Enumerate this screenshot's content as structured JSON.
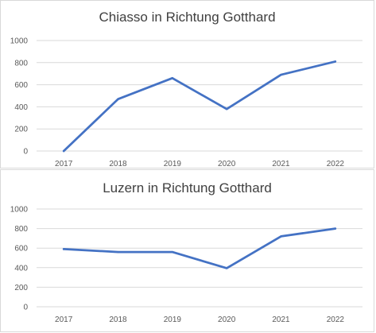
{
  "chart_data": [
    {
      "type": "line",
      "title": "Chiasso in Richtung Gotthard",
      "categories": [
        "2017",
        "2018",
        "2019",
        "2020",
        "2021",
        "2022"
      ],
      "series": [
        {
          "values": [
            0,
            470,
            660,
            380,
            690,
            810
          ],
          "color": "#4472C4"
        }
      ],
      "ylim": [
        0,
        1000
      ],
      "yticks": [
        0,
        200,
        400,
        600,
        800,
        1000
      ],
      "grid": true,
      "xlabel": "",
      "ylabel": ""
    },
    {
      "type": "line",
      "title": "Luzern in Richtung Gotthard",
      "categories": [
        "2017",
        "2018",
        "2019",
        "2020",
        "2021",
        "2022"
      ],
      "series": [
        {
          "values": [
            590,
            560,
            560,
            395,
            720,
            800
          ],
          "color": "#4472C4"
        }
      ],
      "ylim": [
        0,
        1000
      ],
      "yticks": [
        0,
        200,
        400,
        600,
        800,
        1000
      ],
      "grid": true,
      "xlabel": "",
      "ylabel": ""
    }
  ]
}
